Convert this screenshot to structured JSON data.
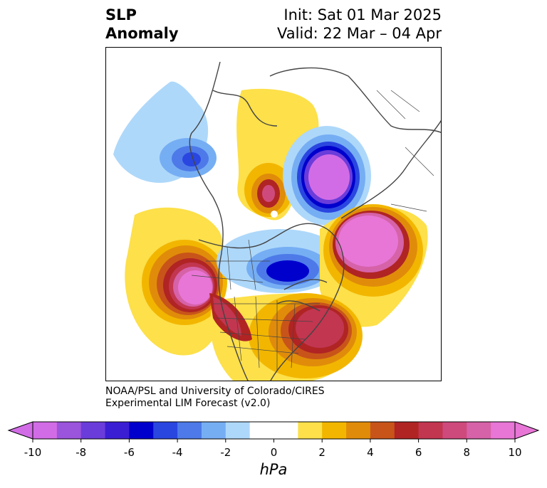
{
  "title": {
    "left_line1": "SLP",
    "left_line2": "Anomaly",
    "init": "Init: Sat 01 Mar 2025",
    "valid": "Valid: 22 Mar – 04 Apr"
  },
  "credit": {
    "line1": "NOAA/PSL and University of Colorado/CIRES",
    "line2": "Experimental LIM Forecast (v2.0)"
  },
  "colorbar": {
    "unit": "hPa",
    "ticks": [
      "-10",
      "-8",
      "-6",
      "-4",
      "-2",
      "0",
      "2",
      "4",
      "6",
      "8",
      "10"
    ],
    "colors": [
      "#d26ce6",
      "#9b54dc",
      "#6a3cda",
      "#3a1ed4",
      "#0000cd",
      "#2a46e0",
      "#4d7ae8",
      "#76aef4",
      "#aed8fa",
      "#ffffff",
      "#ffffff",
      "#fde04a",
      "#f2b600",
      "#e08c0a",
      "#c8541a",
      "#b02424",
      "#c23650",
      "#cf4a7c",
      "#d662a8",
      "#e876d6"
    ]
  },
  "map_features": [
    {
      "name": "low-pacific-anomaly",
      "type": "low"
    },
    {
      "name": "high-aleutian-anomaly",
      "type": "high"
    },
    {
      "name": "low-polar-anomaly",
      "type": "low"
    },
    {
      "name": "high-east-pacific-anomaly",
      "type": "high"
    },
    {
      "name": "low-hudson-bay-anomaly",
      "type": "low"
    },
    {
      "name": "high-north-atlantic-anomaly",
      "type": "high"
    },
    {
      "name": "high-eastern-us-anomaly",
      "type": "high"
    }
  ]
}
